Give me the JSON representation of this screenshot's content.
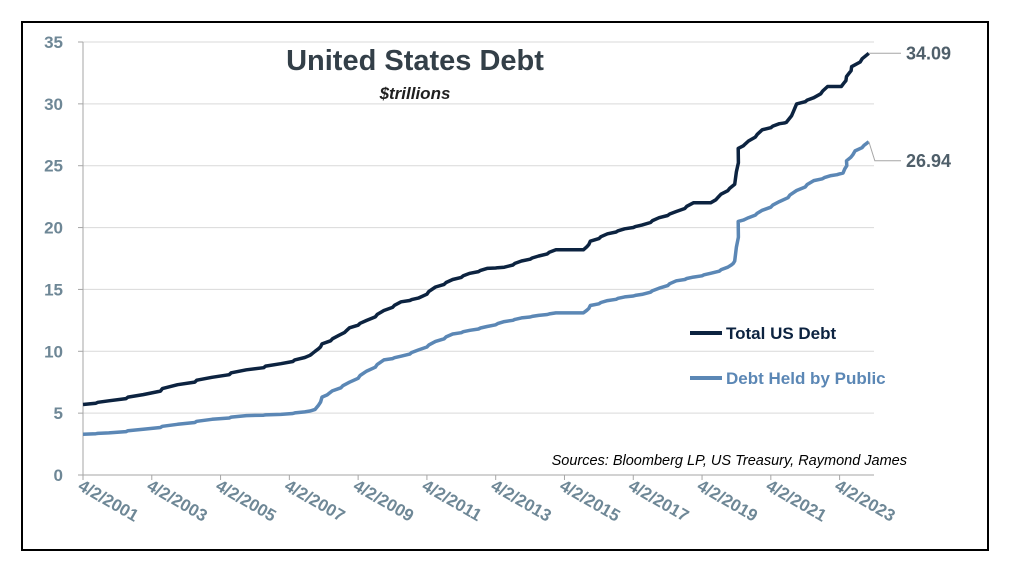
{
  "chart_data": {
    "type": "line",
    "title": "United States Debt",
    "subtitle": "$trillions",
    "source": "Sources: Bloomberg LP, US Treasury, Raymond James",
    "ylim": [
      0,
      35
    ],
    "yticks": [
      0,
      5,
      10,
      15,
      20,
      25,
      30,
      35
    ],
    "ytick_labels": [
      "0",
      "5",
      "10",
      "15",
      "20",
      "25",
      "30",
      "35"
    ],
    "xlim": [
      2001.25,
      2024.25
    ],
    "xticks": [
      2001.25,
      2003.25,
      2005.25,
      2007.25,
      2009.25,
      2011.25,
      2013.25,
      2015.25,
      2017.25,
      2019.25,
      2021.25,
      2023.25
    ],
    "xtick_labels": [
      "4/2/2001",
      "4/2/2003",
      "4/2/2005",
      "4/2/2007",
      "4/2/2009",
      "4/2/2011",
      "4/2/2013",
      "4/2/2015",
      "4/2/2017",
      "4/2/2019",
      "4/2/2021",
      "4/2/2023"
    ],
    "grid": "horizontal",
    "legend_position": "right",
    "series": [
      {
        "name": "Total US Debt",
        "color": "#0c2340",
        "end_label": "34.09",
        "x": [
          2001.25,
          2002.0,
          2003.0,
          2004.0,
          2005.0,
          2006.0,
          2007.0,
          2007.7,
          2008.0,
          2008.2,
          2008.7,
          2009.0,
          2009.5,
          2010.0,
          2010.5,
          2011.0,
          2011.5,
          2012.0,
          2012.5,
          2013.0,
          2013.5,
          2014.0,
          2014.5,
          2015.0,
          2015.8,
          2016.0,
          2016.5,
          2017.0,
          2017.5,
          2018.0,
          2018.5,
          2019.0,
          2019.5,
          2019.8,
          2020.2,
          2020.3,
          2020.6,
          2021.0,
          2021.5,
          2021.7,
          2022.0,
          2022.5,
          2022.9,
          2023.3,
          2023.45,
          2023.6,
          2024.1
        ],
        "y": [
          5.7,
          6.0,
          6.5,
          7.3,
          7.9,
          8.5,
          9.0,
          9.5,
          10.0,
          10.6,
          11.3,
          11.9,
          12.5,
          13.3,
          14.0,
          14.3,
          15.2,
          15.8,
          16.3,
          16.7,
          16.8,
          17.3,
          17.7,
          18.2,
          18.2,
          18.9,
          19.5,
          19.9,
          20.2,
          20.8,
          21.3,
          22.0,
          22.0,
          22.7,
          23.5,
          26.4,
          27.0,
          27.9,
          28.4,
          28.5,
          30.0,
          30.5,
          31.4,
          31.4,
          32.2,
          33.0,
          34.09
        ]
      },
      {
        "name": "Debt Held by Public",
        "color": "#5b87b5",
        "end_label": "26.94",
        "x": [
          2001.25,
          2002.0,
          2003.0,
          2004.0,
          2005.0,
          2006.0,
          2007.0,
          2007.7,
          2008.0,
          2008.2,
          2008.5,
          2009.0,
          2009.5,
          2010.0,
          2010.5,
          2011.0,
          2011.5,
          2012.0,
          2012.5,
          2013.0,
          2013.5,
          2014.0,
          2014.5,
          2015.0,
          2015.8,
          2016.0,
          2016.5,
          2017.0,
          2017.5,
          2018.0,
          2018.5,
          2019.0,
          2019.5,
          2020.0,
          2020.2,
          2020.3,
          2020.6,
          2021.0,
          2021.5,
          2022.0,
          2022.5,
          2023.0,
          2023.35,
          2023.45,
          2023.7,
          2024.1
        ],
        "y": [
          3.3,
          3.4,
          3.7,
          4.1,
          4.5,
          4.8,
          4.9,
          5.1,
          5.3,
          6.3,
          6.8,
          7.5,
          8.4,
          9.3,
          9.6,
          10.1,
          10.8,
          11.4,
          11.7,
          12.0,
          12.4,
          12.7,
          12.9,
          13.1,
          13.1,
          13.7,
          14.1,
          14.4,
          14.6,
          15.1,
          15.7,
          16.0,
          16.3,
          16.8,
          17.3,
          20.5,
          20.8,
          21.4,
          22.1,
          23.0,
          23.8,
          24.2,
          24.4,
          25.4,
          26.2,
          26.94
        ]
      }
    ]
  }
}
